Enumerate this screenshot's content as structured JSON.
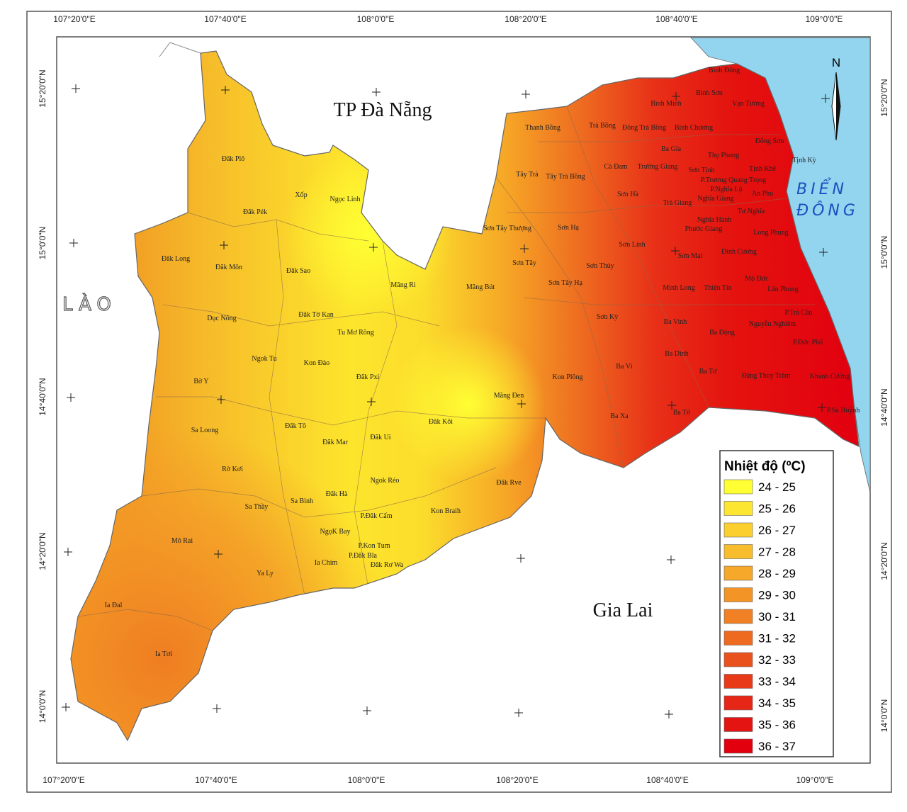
{
  "map": {
    "labels": {
      "danang": "TP Đà Nẵng",
      "gialai": "Gia Lai",
      "lao": "LÀO",
      "sea_1": "BIỂN",
      "sea_2": "ĐÔNG",
      "north": "N"
    },
    "graticule": {
      "top": [
        "107°20'0\"E",
        "107°40'0\"E",
        "108°0'0\"E",
        "108°20'0\"E",
        "108°40'0\"E",
        "109°0'0\"E"
      ],
      "bottom": [
        "107°20'0\"E",
        "107°40'0\"E",
        "108°0'0\"E",
        "108°20'0\"E",
        "108°40'0\"E",
        "109°0'0\"E"
      ],
      "left": [
        "15°20'0\"N",
        "15°0'0\"N",
        "14°40'0\"N",
        "14°20'0\"N",
        "14°0'0\"N"
      ],
      "right": [
        "15°20'0\"N",
        "15°0'0\"N",
        "14°40'0\"N",
        "14°20'0\"N",
        "14°0'0\"N"
      ]
    },
    "legend": {
      "title": "Nhiệt độ (ºC)",
      "items": [
        {
          "label": "24 - 25",
          "color": "#ffff33"
        },
        {
          "label": "25 - 26",
          "color": "#fde632"
        },
        {
          "label": "26 - 27",
          "color": "#fbd02e"
        },
        {
          "label": "27 - 28",
          "color": "#f8bd2c"
        },
        {
          "label": "28 - 29",
          "color": "#f5a829"
        },
        {
          "label": "29 - 30",
          "color": "#f39526"
        },
        {
          "label": "30 - 31",
          "color": "#f08023"
        },
        {
          "label": "31 - 32",
          "color": "#ee6a20"
        },
        {
          "label": "32 - 33",
          "color": "#ea521d"
        },
        {
          "label": "33 - 34",
          "color": "#e83a19"
        },
        {
          "label": "34 - 35",
          "color": "#e62616"
        },
        {
          "label": "35 - 36",
          "color": "#e41412"
        },
        {
          "label": "36 - 37",
          "color": "#e2000f"
        }
      ]
    },
    "places": [
      "Đăk Plô",
      "Xốp",
      "Ngọc Linh",
      "Đăk Pék",
      "Đăk Long",
      "Đăk Môn",
      "Đăk Sao",
      "Măng Ri",
      "Măng Bút",
      "Dục Nông",
      "Đăk Tờ Kan",
      "Tu Mơ Rông",
      "Ngok Tu",
      "Kon Đào",
      "Đăk Pxi",
      "Bờ Y",
      "Kon Plông",
      "Măng Đen",
      "Đăk Kôi",
      "Đăk Tô",
      "Sa Loong",
      "Đăk Mar",
      "Đăk Ui",
      "Rờ Kơi",
      "Ngok Réo",
      "Đăk Rve",
      "Sa Thầy",
      "Sa Bình",
      "Đăk Hà",
      "Kon Braih",
      "P.Đăk Cấm",
      "NgọK Bay",
      "Mô Rai",
      "P.Kon Tum",
      "P.Đăk Bla",
      "Đăk Rơ Wa",
      "Ia Chim",
      "Ya Ly",
      "Ia Đal",
      "Ia Tơi",
      "Thanh Bồng",
      "Trà Bồng",
      "Đông Trà Bồng",
      "Bình Chương",
      "Bình Đông",
      "Bình Sơn",
      "Bình Minh",
      "Vạn Tường",
      "Đông Sơn",
      "Ba Gia",
      "Thọ Phong",
      "Tây Trà",
      "Tây Trà Bồng",
      "Cà Đam",
      "Trường Giang",
      "Sơn Tịnh",
      "Tịnh Khê",
      "Tịnh Kỳ",
      "P.Trương Quang Trọng",
      "P.Nghĩa Lộ",
      "An Phú",
      "Sơn Hà",
      "Trà Giang",
      "Nghĩa Giang",
      "Tư Nghĩa",
      "Nghĩa Hành",
      "Sơn Tây Thượng",
      "Sơn Hạ",
      "Phước Giang",
      "Long Phụng",
      "Sơn Linh",
      "Sơn Mai",
      "Đình Cương",
      "Sơn Tây",
      "Sơn Thủy",
      "Minh Long",
      "Thiện Tín",
      "Mộ Đức",
      "Lân Phong",
      "Sơn Tây Hạ",
      "Sơn Kỳ",
      "P.Trà Câu",
      "Ba Vinh",
      "Nguyễn Nghiêm",
      "Ba Động",
      "P.Đức Phổ",
      "Ba Dinh",
      "Ba Tơ",
      "Ba Vì",
      "Đặng Thùy Trâm",
      "Khánh Cường",
      "Ba Tô",
      "Ba Xa",
      "P.Sa Huỳnh"
    ]
  }
}
